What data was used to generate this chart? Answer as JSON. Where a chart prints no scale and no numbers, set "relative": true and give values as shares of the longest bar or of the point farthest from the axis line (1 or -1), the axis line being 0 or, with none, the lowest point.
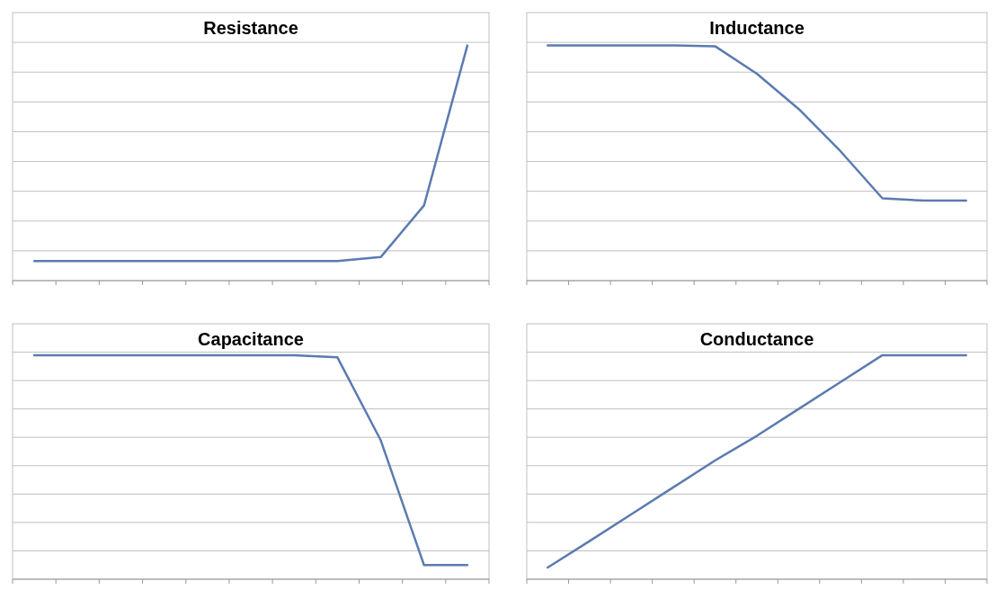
{
  "chart_data": [
    {
      "type": "line",
      "title": "Resistance",
      "relative": true,
      "grid": "y",
      "categories": [
        null,
        null,
        null,
        null,
        null,
        null,
        null,
        null,
        null,
        null,
        null
      ],
      "series": [
        {
          "color": "#5b7bb0",
          "values": [
            0.083,
            0.083,
            0.083,
            0.083,
            0.083,
            0.083,
            0.083,
            0.083,
            0.1,
            0.32,
            1
          ]
        }
      ]
    },
    {
      "type": "line",
      "title": "Inductance",
      "relative": true,
      "grid": "y",
      "categories": [
        null,
        null,
        null,
        null,
        null,
        null,
        null,
        null,
        null,
        null,
        null
      ],
      "series": [
        {
          "color": "#5b7bb0",
          "values": [
            1,
            1,
            1,
            1,
            0.997,
            0.88,
            0.73,
            0.55,
            0.35,
            0.34,
            0.34
          ]
        }
      ]
    },
    {
      "type": "line",
      "title": "Capacitance",
      "relative": true,
      "grid": "y",
      "categories": [
        null,
        null,
        null,
        null,
        null,
        null,
        null,
        null,
        null,
        null,
        null
      ],
      "series": [
        {
          "color": "#5b7bb0",
          "values": [
            1,
            1,
            1,
            1,
            1,
            1,
            1,
            0.99,
            0.62,
            0.063,
            0.063
          ]
        }
      ]
    },
    {
      "type": "line",
      "title": "Conductance",
      "relative": true,
      "grid": "y",
      "categories": [
        null,
        null,
        null,
        null,
        null,
        null,
        null,
        null,
        null,
        null,
        null
      ],
      "series": [
        {
          "color": "#5b7bb0",
          "values": [
            0.052,
            0.17,
            0.29,
            0.41,
            0.53,
            0.64,
            0.76,
            0.88,
            1,
            1,
            1
          ]
        }
      ]
    }
  ]
}
